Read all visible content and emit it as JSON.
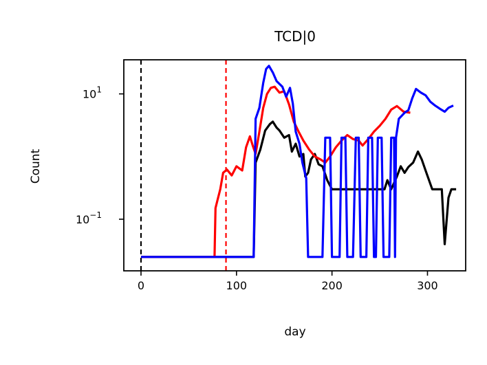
{
  "chart_data": {
    "type": "line",
    "title": "TCD|0",
    "xlabel": "day",
    "ylabel": "Count",
    "xlim": [
      -18,
      340
    ],
    "ylim": [
      0.015,
      35
    ],
    "yscale": "log",
    "grid": false,
    "x_ticks": [
      {
        "value": 0,
        "label": "0"
      },
      {
        "value": 100,
        "label": "100"
      },
      {
        "value": 200,
        "label": "200"
      },
      {
        "value": 300,
        "label": "300"
      }
    ],
    "y_ticks": [
      {
        "value": 0.1,
        "base": "10",
        "exp": "−1"
      },
      {
        "value": 10,
        "base": "10",
        "exp": "1"
      }
    ],
    "vlines": [
      {
        "x": 0,
        "color": "#000000",
        "style": "dashed"
      },
      {
        "x": 89,
        "color": "#ff0000",
        "style": "dashed"
      }
    ],
    "series": [
      {
        "color": "#000000",
        "points": [
          [
            0,
            0.025
          ],
          [
            118,
            0.025
          ],
          [
            120,
            0.8
          ],
          [
            125,
            1.3
          ],
          [
            130,
            2.6
          ],
          [
            135,
            3.3
          ],
          [
            138,
            3.6
          ],
          [
            142,
            2.9
          ],
          [
            145,
            2.6
          ],
          [
            150,
            2.0
          ],
          [
            155,
            2.2
          ],
          [
            158,
            1.2
          ],
          [
            162,
            1.6
          ],
          [
            166,
            1.0
          ],
          [
            170,
            1.1
          ],
          [
            172,
            0.48
          ],
          [
            175,
            0.55
          ],
          [
            178,
            0.9
          ],
          [
            182,
            1.1
          ],
          [
            186,
            0.75
          ],
          [
            190,
            0.7
          ],
          [
            195,
            0.42
          ],
          [
            200,
            0.3
          ],
          [
            210,
            0.3
          ],
          [
            230,
            0.3
          ],
          [
            255,
            0.3
          ],
          [
            258,
            0.42
          ],
          [
            262,
            0.3
          ],
          [
            268,
            0.48
          ],
          [
            272,
            0.7
          ],
          [
            276,
            0.55
          ],
          [
            280,
            0.68
          ],
          [
            285,
            0.8
          ],
          [
            290,
            1.2
          ],
          [
            294,
            0.9
          ],
          [
            298,
            0.6
          ],
          [
            305,
            0.3
          ],
          [
            315,
            0.3
          ],
          [
            318,
            0.04
          ],
          [
            322,
            0.22
          ],
          [
            325,
            0.3
          ],
          [
            330,
            0.3
          ]
        ]
      },
      {
        "color": "#ff0000",
        "points": [
          [
            0,
            0.025
          ],
          [
            77,
            0.025
          ],
          [
            78,
            0.15
          ],
          [
            80,
            0.2
          ],
          [
            83,
            0.3
          ],
          [
            86,
            0.55
          ],
          [
            90,
            0.62
          ],
          [
            95,
            0.5
          ],
          [
            100,
            0.7
          ],
          [
            106,
            0.6
          ],
          [
            110,
            1.4
          ],
          [
            114,
            2.1
          ],
          [
            117,
            1.5
          ],
          [
            120,
            1.1
          ],
          [
            124,
            2.5
          ],
          [
            128,
            6.0
          ],
          [
            132,
            10.0
          ],
          [
            136,
            12.5
          ],
          [
            140,
            13.0
          ],
          [
            145,
            10.5
          ],
          [
            150,
            11.0
          ],
          [
            155,
            6.8
          ],
          [
            160,
            3.6
          ],
          [
            165,
            2.5
          ],
          [
            170,
            1.8
          ],
          [
            176,
            1.3
          ],
          [
            182,
            1.0
          ],
          [
            188,
            0.9
          ],
          [
            193,
            0.8
          ],
          [
            198,
            1.0
          ],
          [
            204,
            1.4
          ],
          [
            210,
            1.8
          ],
          [
            216,
            2.2
          ],
          [
            222,
            1.9
          ],
          [
            228,
            1.8
          ],
          [
            232,
            1.5
          ],
          [
            238,
            1.9
          ],
          [
            244,
            2.5
          ],
          [
            250,
            3.1
          ],
          [
            256,
            4.0
          ],
          [
            262,
            5.6
          ],
          [
            268,
            6.4
          ],
          [
            275,
            5.2
          ],
          [
            282,
            5.0
          ]
        ]
      },
      {
        "color": "#0000ff",
        "points": [
          [
            0,
            0.025
          ],
          [
            118,
            0.025
          ],
          [
            120,
            4.0
          ],
          [
            124,
            6.0
          ],
          [
            128,
            15.0
          ],
          [
            131,
            25.0
          ],
          [
            134,
            28.0
          ],
          [
            138,
            22.0
          ],
          [
            142,
            16.0
          ],
          [
            148,
            13.0
          ],
          [
            152,
            9.0
          ],
          [
            156,
            12.5
          ],
          [
            159,
            7.0
          ],
          [
            162,
            2.5
          ],
          [
            166,
            1.6
          ],
          [
            169,
            0.8
          ],
          [
            173,
            0.45
          ],
          [
            175,
            0.025
          ],
          [
            190,
            0.025
          ],
          [
            193,
            2.0
          ],
          [
            198,
            2.0
          ],
          [
            200,
            0.025
          ],
          [
            208,
            0.025
          ],
          [
            210,
            2.0
          ],
          [
            214,
            2.0
          ],
          [
            216,
            0.025
          ],
          [
            222,
            0.025
          ],
          [
            225,
            2.0
          ],
          [
            228,
            2.0
          ],
          [
            230,
            0.025
          ],
          [
            236,
            0.025
          ],
          [
            238,
            2.0
          ],
          [
            242,
            2.0
          ],
          [
            244,
            0.025
          ],
          [
            246,
            0.025
          ],
          [
            248,
            2.0
          ],
          [
            252,
            2.0
          ],
          [
            254,
            0.025
          ],
          [
            260,
            0.025
          ],
          [
            262,
            2.0
          ],
          [
            265,
            2.0
          ],
          [
            266,
            0.025
          ],
          [
            267,
            2.0
          ],
          [
            270,
            4.0
          ],
          [
            276,
            5.0
          ],
          [
            280,
            5.5
          ],
          [
            284,
            8.5
          ],
          [
            288,
            12.0
          ],
          [
            293,
            10.5
          ],
          [
            298,
            9.5
          ],
          [
            303,
            7.5
          ],
          [
            308,
            6.5
          ],
          [
            313,
            5.8
          ],
          [
            318,
            5.2
          ],
          [
            322,
            6.0
          ],
          [
            327,
            6.5
          ]
        ]
      }
    ]
  }
}
